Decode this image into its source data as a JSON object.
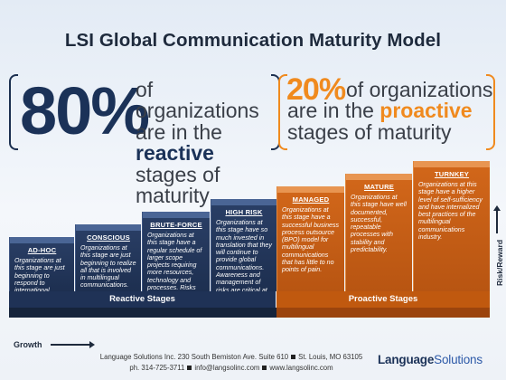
{
  "title": "LSI Global Communication Maturity Model",
  "reactive_stat": {
    "percent": "80%",
    "line1": "of organizations",
    "line2_prefix": "are in the",
    "keyword": "reactive",
    "line3": "stages of maturity"
  },
  "proactive_stat": {
    "percent": "20%",
    "line1": "of organizations",
    "line2_prefix": "are in the",
    "keyword": "proactive",
    "line3": "stages of maturity"
  },
  "stages": [
    {
      "title": "AD-HOC",
      "group": "reactive",
      "desc": "Organizations at this stage are just beginning to respond to international market demands."
    },
    {
      "title": "CONSCIOUS",
      "group": "reactive",
      "desc": "Organizations at this stage are just beginning to realize all that is involved in multilingual communications."
    },
    {
      "title": "BRUTE-FORCE",
      "group": "reactive",
      "desc": "Organizations at this stage have a regular schedule of larger scope projects requiring more resources, technology and processes. Risks are tangible."
    },
    {
      "title": "HIGH RISK",
      "group": "reactive",
      "desc": "Organizations at this stage have so much invested in translation that they will continue to provide global communications. Awareness and management of risks are critical at this stage."
    },
    {
      "title": "MANAGED",
      "group": "proactive",
      "desc": "Organizations at this stage have a successful business process outsource (BPO) model for multilingual communications that has little to no points of pain."
    },
    {
      "title": "MATURE",
      "group": "proactive",
      "desc": "Organizations at this stage have well documented, successful, repeatable processes with stability and predictability."
    },
    {
      "title": "TURNKEY",
      "group": "proactive",
      "desc": "Organizations at this stage have a higher level of self-sufficiency and have internalized best practices of the multilingual communications industry."
    }
  ],
  "base_labels": {
    "reactive": "Reactive Stages",
    "proactive": "Proactive Stages"
  },
  "axis": {
    "risk_reward": "Risk/Reward",
    "growth": "Growth"
  },
  "footer": {
    "address": "Language Solutions Inc. 230 South Bemiston Ave. Suite 610",
    "city": "St. Louis, MO 63105",
    "phone": "ph. 314-725-3711",
    "email": "info@langsolinc.com",
    "web": "www.langsolinc.com"
  },
  "logo": {
    "part1": "Language",
    "part2": "Solutions"
  },
  "colors": {
    "reactive": "#1f3256",
    "proactive": "#c0590f",
    "accent_orange": "#f08a1e",
    "navy_text": "#1b3258"
  }
}
